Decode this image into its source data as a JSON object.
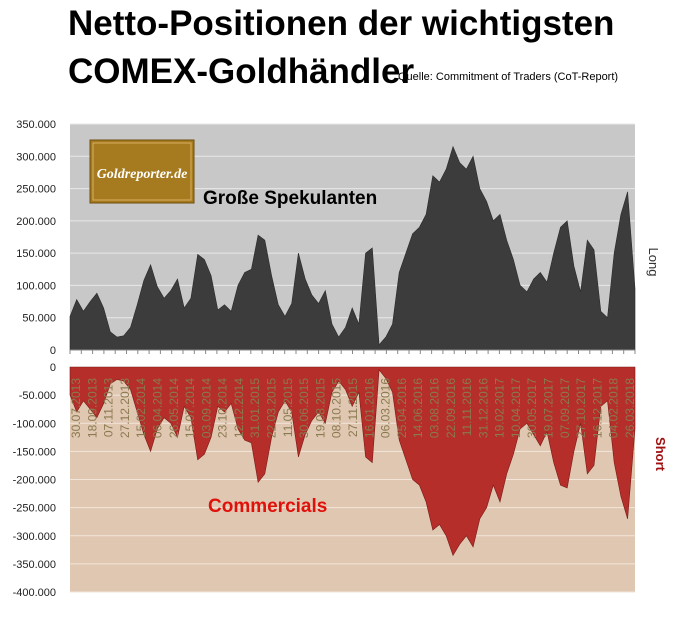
{
  "title_line1": "Netto-Positionen der wichtigsten",
  "title_line2": "COMEX-Goldhändler",
  "source": "Quelle: Commitment of Traders (CoT-Report)",
  "logo_text": "Goldreporter.de",
  "colors": {
    "top_bg": "#c8c8c8",
    "bottom_bg": "#e0c7b1",
    "long_fill": "#3c3c3c",
    "short_fill": "#b52e2a",
    "commercials_label": "#e0100a",
    "short_label": "#a01010",
    "logo_bg": "#a67a1e"
  },
  "chart_data": [
    {
      "type": "area",
      "series_label": "Große Spekulanten",
      "side_label": "Long",
      "ylim": [
        0,
        350000
      ],
      "yticks": [
        "0",
        "50.000",
        "100.000",
        "150.000",
        "200.000",
        "250.000",
        "300.000",
        "350.000"
      ],
      "x_range": [
        "2013-07-30",
        "2018-05-31"
      ],
      "points": [
        [
          "2013-07-30",
          52000
        ],
        [
          "2013-08-20",
          78000
        ],
        [
          "2013-09-10",
          60000
        ],
        [
          "2013-10-01",
          75000
        ],
        [
          "2013-10-22",
          88000
        ],
        [
          "2013-11-12",
          65000
        ],
        [
          "2013-12-03",
          28000
        ],
        [
          "2013-12-24",
          20000
        ],
        [
          "2014-01-14",
          22000
        ],
        [
          "2014-02-04",
          35000
        ],
        [
          "2014-02-25",
          70000
        ],
        [
          "2014-03-18",
          108000
        ],
        [
          "2014-04-08",
          132000
        ],
        [
          "2014-04-29",
          98000
        ],
        [
          "2014-05-20",
          80000
        ],
        [
          "2014-06-10",
          92000
        ],
        [
          "2014-07-01",
          110000
        ],
        [
          "2014-07-22",
          65000
        ],
        [
          "2014-08-12",
          80000
        ],
        [
          "2014-09-02",
          148000
        ],
        [
          "2014-09-23",
          140000
        ],
        [
          "2014-10-14",
          115000
        ],
        [
          "2014-11-04",
          62000
        ],
        [
          "2014-11-25",
          70000
        ],
        [
          "2014-12-16",
          60000
        ],
        [
          "2015-01-06",
          100000
        ],
        [
          "2015-01-27",
          120000
        ],
        [
          "2015-02-17",
          125000
        ],
        [
          "2015-03-10",
          178000
        ],
        [
          "2015-03-31",
          170000
        ],
        [
          "2015-04-21",
          115000
        ],
        [
          "2015-05-12",
          70000
        ],
        [
          "2015-06-02",
          52000
        ],
        [
          "2015-06-23",
          72000
        ],
        [
          "2015-07-14",
          150000
        ],
        [
          "2015-08-04",
          110000
        ],
        [
          "2015-08-25",
          85000
        ],
        [
          "2015-09-15",
          72000
        ],
        [
          "2015-10-06",
          92000
        ],
        [
          "2015-10-27",
          40000
        ],
        [
          "2015-11-17",
          20000
        ],
        [
          "2015-12-08",
          35000
        ],
        [
          "2015-12-29",
          65000
        ],
        [
          "2016-01-19",
          40000
        ],
        [
          "2016-02-09",
          150000
        ],
        [
          "2016-03-01",
          158000
        ],
        [
          "2016-03-22",
          8000
        ],
        [
          "2016-04-12",
          20000
        ],
        [
          "2016-05-03",
          40000
        ],
        [
          "2016-05-24",
          120000
        ],
        [
          "2016-06-14",
          150000
        ],
        [
          "2016-07-05",
          180000
        ],
        [
          "2016-07-26",
          190000
        ],
        [
          "2016-08-16",
          210000
        ],
        [
          "2016-09-06",
          270000
        ],
        [
          "2016-09-27",
          260000
        ],
        [
          "2016-10-18",
          280000
        ],
        [
          "2016-11-08",
          315000
        ],
        [
          "2016-11-29",
          290000
        ],
        [
          "2016-12-20",
          280000
        ],
        [
          "2017-01-10",
          300000
        ],
        [
          "2017-01-31",
          250000
        ],
        [
          "2017-02-21",
          230000
        ],
        [
          "2017-03-14",
          200000
        ],
        [
          "2017-04-04",
          210000
        ],
        [
          "2017-04-25",
          170000
        ],
        [
          "2017-05-16",
          140000
        ],
        [
          "2017-06-06",
          100000
        ],
        [
          "2017-06-27",
          90000
        ],
        [
          "2017-07-18",
          110000
        ],
        [
          "2017-08-08",
          120000
        ],
        [
          "2017-08-29",
          105000
        ],
        [
          "2017-09-19",
          150000
        ],
        [
          "2017-10-10",
          190000
        ],
        [
          "2017-10-31",
          200000
        ],
        [
          "2017-11-21",
          130000
        ],
        [
          "2017-12-12",
          90000
        ],
        [
          "2018-01-02",
          170000
        ],
        [
          "2018-01-23",
          155000
        ],
        [
          "2018-02-13",
          60000
        ],
        [
          "2018-03-06",
          50000
        ],
        [
          "2018-03-27",
          150000
        ],
        [
          "2018-04-17",
          210000
        ],
        [
          "2018-05-08",
          245000
        ],
        [
          "2018-05-31",
          95000
        ]
      ]
    },
    {
      "type": "area",
      "series_label": "Commercials",
      "side_label": "Short",
      "ylim": [
        -400000,
        0
      ],
      "yticks": [
        "0",
        "-50.000",
        "-100.000",
        "-150.000",
        "-200.000",
        "-250.000",
        "-300.000",
        "-350.000",
        "-400.000"
      ],
      "x_tick_labels": [
        "30.07.2013",
        "18.09.2013",
        "07.11.2013",
        "27.12.2013",
        "15.02.2014",
        "06.04.2014",
        "26.05.2014",
        "15.07.2014",
        "03.09.2014",
        "23.10.2014",
        "12.12.2014",
        "31.01.2015",
        "22.03.2015",
        "11.05.2015",
        "30.06.2015",
        "19.08.2015",
        "08.10.2015",
        "27.11.2015",
        "16.01.2016",
        "06.03.2016",
        "25.04.2016",
        "14.06.2016",
        "03.08.2016",
        "22.09.2016",
        "11.11.2016",
        "31.12.2016",
        "19.02.2017",
        "10.04.2017",
        "30.05.2017",
        "19.07.2017",
        "07.09.2017",
        "27.10.2017",
        "16.12.2017",
        "04.02.2018",
        "26.03.2018"
      ],
      "points": [
        [
          "2013-07-30",
          -50000
        ],
        [
          "2013-08-20",
          -80000
        ],
        [
          "2013-09-10",
          -60000
        ],
        [
          "2013-10-01",
          -75000
        ],
        [
          "2013-10-22",
          -90000
        ],
        [
          "2013-11-12",
          -65000
        ],
        [
          "2013-12-03",
          -30000
        ],
        [
          "2013-12-24",
          -22000
        ],
        [
          "2014-01-14",
          -25000
        ],
        [
          "2014-02-04",
          -40000
        ],
        [
          "2014-02-25",
          -80000
        ],
        [
          "2014-03-18",
          -120000
        ],
        [
          "2014-04-08",
          -150000
        ],
        [
          "2014-04-29",
          -110000
        ],
        [
          "2014-05-20",
          -90000
        ],
        [
          "2014-06-10",
          -100000
        ],
        [
          "2014-07-01",
          -125000
        ],
        [
          "2014-07-22",
          -70000
        ],
        [
          "2014-08-12",
          -90000
        ],
        [
          "2014-09-02",
          -165000
        ],
        [
          "2014-09-23",
          -155000
        ],
        [
          "2014-10-14",
          -125000
        ],
        [
          "2014-11-04",
          -70000
        ],
        [
          "2014-11-25",
          -80000
        ],
        [
          "2014-12-16",
          -65000
        ],
        [
          "2015-01-06",
          -110000
        ],
        [
          "2015-01-27",
          -130000
        ],
        [
          "2015-02-17",
          -135000
        ],
        [
          "2015-03-10",
          -205000
        ],
        [
          "2015-03-31",
          -190000
        ],
        [
          "2015-04-21",
          -125000
        ],
        [
          "2015-05-12",
          -80000
        ],
        [
          "2015-06-02",
          -60000
        ],
        [
          "2015-06-23",
          -80000
        ],
        [
          "2015-07-14",
          -160000
        ],
        [
          "2015-08-04",
          -120000
        ],
        [
          "2015-08-25",
          -95000
        ],
        [
          "2015-09-15",
          -80000
        ],
        [
          "2015-10-06",
          -100000
        ],
        [
          "2015-10-27",
          -45000
        ],
        [
          "2015-11-17",
          -25000
        ],
        [
          "2015-12-08",
          -40000
        ],
        [
          "2015-12-29",
          -70000
        ],
        [
          "2016-01-19",
          -45000
        ],
        [
          "2016-02-09",
          -160000
        ],
        [
          "2016-03-01",
          -170000
        ],
        [
          "2016-03-22",
          -5000
        ],
        [
          "2016-04-12",
          -20000
        ],
        [
          "2016-05-03",
          -45000
        ],
        [
          "2016-05-24",
          -130000
        ],
        [
          "2016-06-14",
          -165000
        ],
        [
          "2016-07-05",
          -200000
        ],
        [
          "2016-07-26",
          -210000
        ],
        [
          "2016-08-16",
          -240000
        ],
        [
          "2016-09-06",
          -290000
        ],
        [
          "2016-09-27",
          -280000
        ],
        [
          "2016-10-18",
          -300000
        ],
        [
          "2016-11-08",
          -335000
        ],
        [
          "2016-11-29",
          -315000
        ],
        [
          "2016-12-20",
          -300000
        ],
        [
          "2017-01-10",
          -320000
        ],
        [
          "2017-01-31",
          -270000
        ],
        [
          "2017-02-21",
          -250000
        ],
        [
          "2017-03-14",
          -210000
        ],
        [
          "2017-04-04",
          -240000
        ],
        [
          "2017-04-25",
          -190000
        ],
        [
          "2017-05-16",
          -155000
        ],
        [
          "2017-06-06",
          -110000
        ],
        [
          "2017-06-27",
          -100000
        ],
        [
          "2017-07-18",
          -120000
        ],
        [
          "2017-08-08",
          -140000
        ],
        [
          "2017-08-29",
          -115000
        ],
        [
          "2017-09-19",
          -170000
        ],
        [
          "2017-10-10",
          -210000
        ],
        [
          "2017-10-31",
          -215000
        ],
        [
          "2017-11-21",
          -150000
        ],
        [
          "2017-12-12",
          -100000
        ],
        [
          "2018-01-02",
          -190000
        ],
        [
          "2018-01-23",
          -175000
        ],
        [
          "2018-02-13",
          -70000
        ],
        [
          "2018-03-06",
          -60000
        ],
        [
          "2018-03-27",
          -170000
        ],
        [
          "2018-04-17",
          -230000
        ],
        [
          "2018-05-08",
          -270000
        ],
        [
          "2018-05-31",
          -110000
        ]
      ]
    }
  ]
}
